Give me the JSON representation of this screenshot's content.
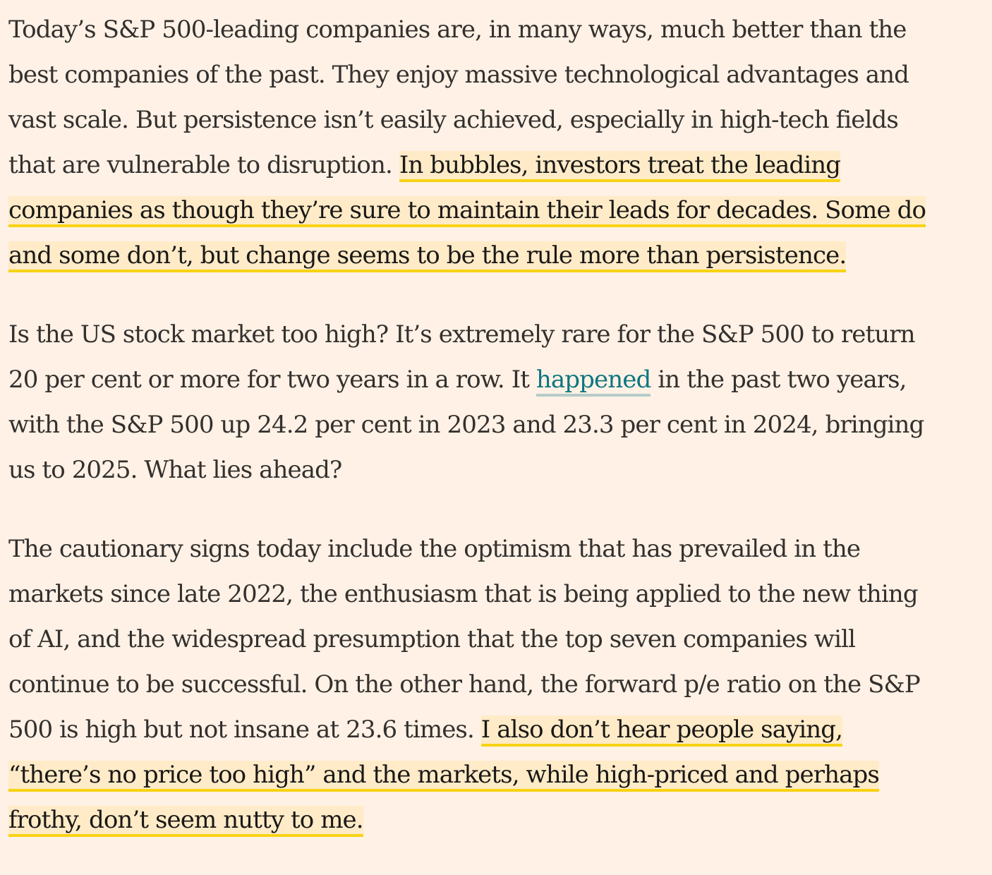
{
  "article": {
    "p1": {
      "l1": "Today’s S&P 500-leading companies are, in many ways, much better than the",
      "l2": "best companies of the past. They enjoy massive technological advantages and",
      "l3": "vast scale. But persistence isn’t easily achieved, especially in high-tech fields",
      "l4_plain": "that are vulnerable to disruption. ",
      "l4_hl": "In bubbles, investors treat the leading",
      "l5_hl": "companies as though they’re sure to maintain their leads for decades. Some do",
      "l6_hl": "and some don’t, but change seems to be the rule more than persistence."
    },
    "p2": {
      "l1": "Is the US stock market too high? It’s extremely rare for the S&P 500 to return",
      "l2_a": "20 per cent or more for two years in a row. It ",
      "l2_link": "happened",
      "l2_b": " in the past two years,",
      "l3": "with the S&P 500 up 24.2 per cent in 2023 and 23.3 per cent in 2024, bringing",
      "l4": "us to 2025. What lies ahead?"
    },
    "p3": {
      "l1": "The cautionary signs today include the optimism that has prevailed in the",
      "l2": "markets since late 2022, the enthusiasm that is being applied to the new thing",
      "l3": "of AI, and the widespread presumption that the top seven companies will",
      "l4": "continue to be successful. On the other hand, the forward p/e ratio on the S&P",
      "l5_plain": "500 is high but not insane at 23.6 times. ",
      "l5_hl": "I also don’t hear people saying,",
      "l6_hl": "“there’s no price too high” and the markets, while high-priced and perhaps",
      "l7_hl": "frothy, don’t seem nutty to me."
    }
  },
  "colors": {
    "background": "#FFF1E5",
    "text": "#33302E",
    "highlight_fill": "#FFEBC7",
    "highlight_underline": "#F7D313",
    "link": "#0D7680"
  }
}
